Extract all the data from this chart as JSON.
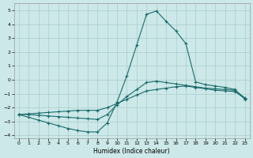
{
  "xlabel": "Humidex (Indice chaleur)",
  "xlim": [
    -0.5,
    23.5
  ],
  "ylim": [
    -4.2,
    5.5
  ],
  "yticks": [
    -4,
    -3,
    -2,
    -1,
    0,
    1,
    2,
    3,
    4,
    5
  ],
  "xticks": [
    0,
    1,
    2,
    3,
    4,
    5,
    6,
    7,
    8,
    9,
    10,
    11,
    12,
    13,
    14,
    15,
    16,
    17,
    18,
    19,
    20,
    21,
    22,
    23
  ],
  "bg_color": "#cce8e8",
  "grid_color": "#aacccc",
  "line_color": "#1a6b6b",
  "line1_x": [
    0,
    1,
    2,
    3,
    4,
    5,
    6,
    7,
    8,
    9,
    10,
    11,
    12,
    13,
    14,
    15,
    16,
    17,
    18,
    19,
    20,
    21,
    22,
    23
  ],
  "line1_y": [
    -2.5,
    -2.7,
    -2.9,
    -3.1,
    -3.3,
    -3.5,
    -3.65,
    -3.75,
    -3.75,
    -3.1,
    -1.6,
    0.3,
    2.5,
    4.7,
    4.95,
    4.2,
    3.5,
    2.6,
    -0.15,
    -0.35,
    -0.45,
    -0.55,
    -0.7,
    -1.4
  ],
  "line2_x": [
    0,
    1,
    2,
    3,
    4,
    5,
    6,
    7,
    8,
    9,
    10,
    11,
    12,
    13,
    14,
    15,
    16,
    17,
    18,
    19,
    20,
    21,
    22,
    23
  ],
  "line2_y": [
    -2.5,
    -2.5,
    -2.55,
    -2.6,
    -2.65,
    -2.7,
    -2.75,
    -2.8,
    -2.85,
    -2.5,
    -1.8,
    -1.2,
    -0.7,
    -0.2,
    -0.1,
    -0.2,
    -0.3,
    -0.4,
    -0.5,
    -0.6,
    -0.65,
    -0.7,
    -0.75,
    -1.3
  ],
  "line3_x": [
    0,
    1,
    2,
    3,
    4,
    5,
    6,
    7,
    8,
    9,
    10,
    11,
    12,
    13,
    14,
    15,
    16,
    17,
    18,
    19,
    20,
    21,
    22,
    23
  ],
  "line3_y": [
    -2.5,
    -2.45,
    -2.4,
    -2.35,
    -2.3,
    -2.25,
    -2.2,
    -2.2,
    -2.2,
    -2.0,
    -1.7,
    -1.4,
    -1.1,
    -0.8,
    -0.7,
    -0.6,
    -0.5,
    -0.45,
    -0.55,
    -0.65,
    -0.75,
    -0.8,
    -0.85,
    -1.35
  ]
}
